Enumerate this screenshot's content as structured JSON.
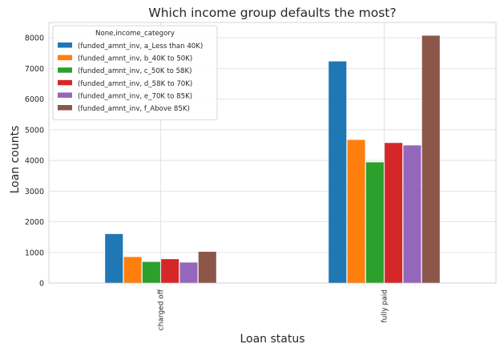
{
  "chart_data": {
    "type": "bar",
    "title": "Which income group defaults the most?",
    "xlabel": "Loan status",
    "ylabel": "Loan counts",
    "categories": [
      "charged off",
      "fully paid"
    ],
    "ylim": [
      0,
      8500
    ],
    "yticks": [
      0,
      1000,
      2000,
      3000,
      4000,
      5000,
      6000,
      7000,
      8000
    ],
    "grid": true,
    "legend": {
      "title": "None,income_category",
      "placement": "top-left"
    },
    "series": [
      {
        "name": "(funded_amnt_inv,  a_Less than 40K)",
        "color": "#1f77b4",
        "values": [
          1600,
          7230
        ]
      },
      {
        "name": "(funded_amnt_inv,  b_40K to 50K)",
        "color": "#ff7f0e",
        "values": [
          850,
          4670
        ]
      },
      {
        "name": "(funded_amnt_inv,  c_50K to 58K)",
        "color": "#2ca02c",
        "values": [
          690,
          3940
        ]
      },
      {
        "name": "(funded_amnt_inv,  d_58K to 70K)",
        "color": "#d62728",
        "values": [
          780,
          4570
        ]
      },
      {
        "name": "(funded_amnt_inv,  e_70K to 85K)",
        "color": "#9467bd",
        "values": [
          670,
          4490
        ]
      },
      {
        "name": "(funded_amnt_inv,  f_Above 85K)",
        "color": "#8c564b",
        "values": [
          1020,
          8070
        ]
      }
    ]
  }
}
